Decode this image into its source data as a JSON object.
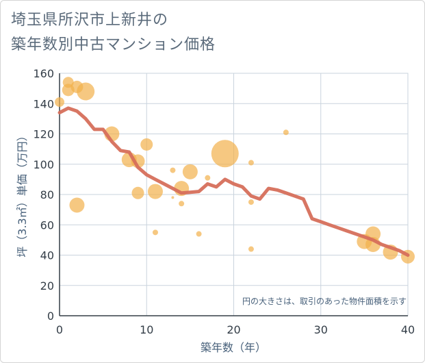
{
  "title": {
    "line1": "埼玉県所沢市上新井の",
    "line2": "築年数別中古マンション価格"
  },
  "chart_data": {
    "type": "scatter",
    "title": "埼玉県所沢市上新井の築年数別中古マンション価格",
    "xlabel": "築年数（年）",
    "ylabel": "坪（3.3㎡）単価（万円）",
    "xlim": [
      0,
      40
    ],
    "ylim": [
      0,
      160
    ],
    "xticks": [
      0,
      10,
      20,
      30,
      40
    ],
    "yticks": [
      0,
      20,
      40,
      60,
      80,
      100,
      120,
      140,
      160
    ],
    "grid": true,
    "note": "円の大きさは、取引のあった物件面積を示す",
    "colors": {
      "bubble": "#f2b04b",
      "line": "#d66f5b",
      "grid": "#c9d3dd"
    },
    "bubbles": [
      {
        "x": 0,
        "y": 141,
        "size": 7
      },
      {
        "x": 1,
        "y": 154,
        "size": 8
      },
      {
        "x": 1,
        "y": 149,
        "size": 9
      },
      {
        "x": 2,
        "y": 151,
        "size": 9
      },
      {
        "x": 2,
        "y": 73,
        "size": 11
      },
      {
        "x": 3,
        "y": 148,
        "size": 13
      },
      {
        "x": 6,
        "y": 120,
        "size": 11
      },
      {
        "x": 8,
        "y": 103,
        "size": 11
      },
      {
        "x": 9,
        "y": 102,
        "size": 10
      },
      {
        "x": 9,
        "y": 81,
        "size": 9
      },
      {
        "x": 10,
        "y": 113,
        "size": 9
      },
      {
        "x": 11,
        "y": 82,
        "size": 11
      },
      {
        "x": 11,
        "y": 55,
        "size": 4
      },
      {
        "x": 13,
        "y": 96,
        "size": 4
      },
      {
        "x": 13,
        "y": 78,
        "size": 2
      },
      {
        "x": 14,
        "y": 84,
        "size": 11
      },
      {
        "x": 14,
        "y": 74,
        "size": 4
      },
      {
        "x": 15,
        "y": 95,
        "size": 11
      },
      {
        "x": 16,
        "y": 54,
        "size": 4
      },
      {
        "x": 17,
        "y": 91,
        "size": 4
      },
      {
        "x": 19,
        "y": 107,
        "size": 20
      },
      {
        "x": 22,
        "y": 101,
        "size": 4
      },
      {
        "x": 22,
        "y": 75,
        "size": 4
      },
      {
        "x": 22,
        "y": 44,
        "size": 4
      },
      {
        "x": 26,
        "y": 121,
        "size": 4
      },
      {
        "x": 35,
        "y": 49,
        "size": 11
      },
      {
        "x": 36,
        "y": 54,
        "size": 11
      },
      {
        "x": 36,
        "y": 47,
        "size": 11
      },
      {
        "x": 38,
        "y": 42,
        "size": 11
      },
      {
        "x": 40,
        "y": 39,
        "size": 10
      }
    ],
    "line": {
      "x": [
        0,
        1,
        2,
        3,
        4,
        5,
        6,
        7,
        8,
        9,
        10,
        11,
        12,
        13,
        14,
        15,
        16,
        17,
        18,
        19,
        20,
        21,
        22,
        23,
        24,
        25,
        26,
        27,
        28,
        29,
        30,
        31,
        32,
        33,
        34,
        35,
        36,
        37,
        38,
        39,
        40
      ],
      "y": [
        134,
        137,
        135,
        130,
        123,
        123,
        115,
        109,
        108,
        98,
        93,
        90,
        87,
        84,
        81,
        81.5,
        82,
        87,
        85,
        90,
        87,
        85,
        79,
        77,
        84,
        83,
        81,
        79,
        77,
        64,
        62,
        60,
        58,
        56,
        54,
        52,
        50,
        47,
        45,
        43,
        40
      ]
    }
  }
}
